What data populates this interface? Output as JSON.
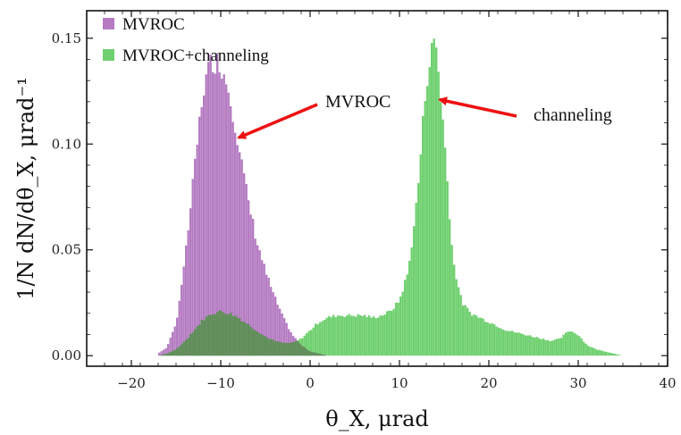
{
  "chart_data": {
    "type": "histogram",
    "title": "",
    "xlabel": "θ_X, μrad",
    "ylabel": "1/N dN/dθ_X, μrad⁻¹",
    "xlim": [
      -25,
      40
    ],
    "ylim": [
      -0.005,
      0.163
    ],
    "xticks": [
      -20,
      -10,
      0,
      10,
      20,
      30,
      40
    ],
    "yticks": [
      0.0,
      0.05,
      0.1,
      0.15
    ],
    "xtick_labels": [
      "−20",
      "−10",
      "0",
      "10",
      "20",
      "30",
      "40"
    ],
    "ytick_labels": [
      "0.00",
      "0.05",
      "0.10",
      "0.15"
    ],
    "grid": false,
    "legend_position": "top-left",
    "colors": {
      "mvroc": "#b57cc2",
      "channeling": "#6fd06f",
      "overlap": "#5f8f57",
      "arrow": "#ee1111"
    },
    "series": [
      {
        "name": "MVROC",
        "x": [
          -17,
          -16,
          -15,
          -14,
          -13,
          -12,
          -11,
          -10,
          -9,
          -8,
          -7,
          -6,
          -5,
          -4,
          -3,
          -2,
          -1,
          0,
          1,
          2
        ],
        "values": [
          0.001,
          0.004,
          0.015,
          0.045,
          0.085,
          0.125,
          0.14,
          0.138,
          0.125,
          0.1,
          0.075,
          0.055,
          0.04,
          0.028,
          0.018,
          0.01,
          0.005,
          0.002,
          0.001,
          0.0
        ]
      },
      {
        "name": "MVROC+channeling",
        "x": [
          -17,
          -16,
          -15,
          -14,
          -13,
          -12,
          -11,
          -10,
          -9,
          -8,
          -7,
          -6,
          -5,
          -4,
          -3,
          -2,
          -1,
          0,
          1,
          2,
          3,
          4,
          5,
          6,
          7,
          8,
          9,
          10,
          11,
          12,
          13,
          14,
          15,
          16,
          17,
          18,
          19,
          20,
          21,
          22,
          23,
          24,
          25,
          26,
          27,
          28,
          29,
          30,
          31,
          32,
          33,
          34,
          35
        ],
        "values": [
          0.0,
          0.001,
          0.003,
          0.007,
          0.012,
          0.017,
          0.02,
          0.021,
          0.02,
          0.018,
          0.015,
          0.012,
          0.009,
          0.007,
          0.006,
          0.006,
          0.008,
          0.012,
          0.016,
          0.018,
          0.019,
          0.019,
          0.019,
          0.019,
          0.018,
          0.019,
          0.021,
          0.026,
          0.04,
          0.075,
          0.13,
          0.152,
          0.105,
          0.045,
          0.025,
          0.02,
          0.018,
          0.016,
          0.014,
          0.012,
          0.011,
          0.01,
          0.009,
          0.008,
          0.007,
          0.008,
          0.012,
          0.01,
          0.005,
          0.003,
          0.002,
          0.001,
          0.0
        ]
      }
    ],
    "annotations": [
      {
        "text": "MVROC",
        "points_to_x": -8,
        "points_to_y": 0.103
      },
      {
        "text": "channeling",
        "points_to_x": 14.5,
        "points_to_y": 0.121
      }
    ]
  }
}
